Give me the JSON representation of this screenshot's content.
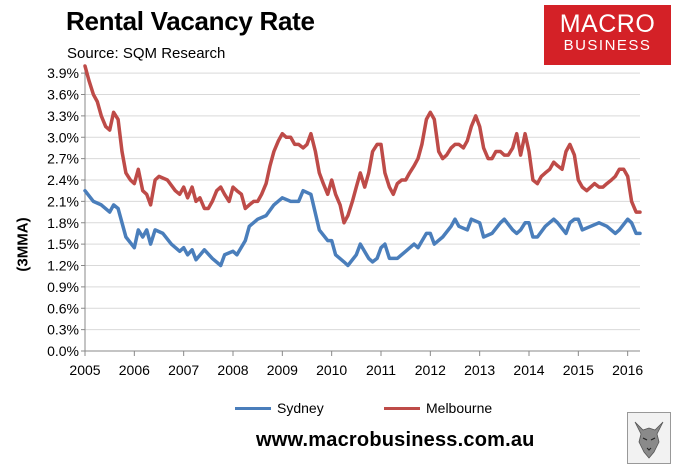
{
  "header": {
    "title": "Rental Vacancy Rate",
    "source": "Source: SQM Research"
  },
  "logo": {
    "line1": "MACRO",
    "line2": "BUSINESS"
  },
  "footer": {
    "url": "www.macrobusiness.com.au"
  },
  "colors": {
    "sydney": "#4a7ebb",
    "melbourne": "#be4b48",
    "grid": "#d9d9d9",
    "logo": "#d42127"
  },
  "chart_data": {
    "type": "line",
    "title": "Rental Vacancy Rate",
    "ylabel": "(3MMA)",
    "xlabel": "",
    "ylim": [
      0,
      4.0
    ],
    "xlim": [
      2005,
      2016.25
    ],
    "yticks": [
      "0.0%",
      "0.3%",
      "0.6%",
      "0.9%",
      "1.2%",
      "1.5%",
      "1.8%",
      "2.1%",
      "2.4%",
      "2.7%",
      "3.0%",
      "3.3%",
      "3.6%",
      "3.9%"
    ],
    "ytick_values": [
      0,
      0.3,
      0.6,
      0.9,
      1.2,
      1.5,
      1.8,
      2.1,
      2.4,
      2.7,
      3.0,
      3.3,
      3.6,
      3.9
    ],
    "xticks": [
      "2005",
      "2006",
      "2007",
      "2008",
      "2009",
      "2010",
      "2011",
      "2012",
      "2013",
      "2014",
      "2015",
      "2016"
    ],
    "legend_position": "bottom",
    "grid": true,
    "series": [
      {
        "name": "Sydney",
        "points": [
          [
            2005.0,
            2.25
          ],
          [
            2005.17,
            2.1
          ],
          [
            2005.33,
            2.05
          ],
          [
            2005.5,
            1.95
          ],
          [
            2005.58,
            2.05
          ],
          [
            2005.67,
            2.0
          ],
          [
            2005.83,
            1.6
          ],
          [
            2006.0,
            1.45
          ],
          [
            2006.08,
            1.7
          ],
          [
            2006.17,
            1.6
          ],
          [
            2006.25,
            1.7
          ],
          [
            2006.33,
            1.5
          ],
          [
            2006.42,
            1.7
          ],
          [
            2006.58,
            1.65
          ],
          [
            2006.75,
            1.5
          ],
          [
            2006.92,
            1.4
          ],
          [
            2007.0,
            1.45
          ],
          [
            2007.08,
            1.35
          ],
          [
            2007.17,
            1.42
          ],
          [
            2007.25,
            1.28
          ],
          [
            2007.42,
            1.42
          ],
          [
            2007.58,
            1.3
          ],
          [
            2007.75,
            1.2
          ],
          [
            2007.83,
            1.35
          ],
          [
            2008.0,
            1.4
          ],
          [
            2008.08,
            1.35
          ],
          [
            2008.25,
            1.55
          ],
          [
            2008.33,
            1.75
          ],
          [
            2008.5,
            1.85
          ],
          [
            2008.67,
            1.9
          ],
          [
            2008.83,
            2.05
          ],
          [
            2009.0,
            2.15
          ],
          [
            2009.17,
            2.1
          ],
          [
            2009.33,
            2.1
          ],
          [
            2009.42,
            2.25
          ],
          [
            2009.58,
            2.2
          ],
          [
            2009.75,
            1.7
          ],
          [
            2009.92,
            1.55
          ],
          [
            2010.0,
            1.55
          ],
          [
            2010.08,
            1.35
          ],
          [
            2010.25,
            1.25
          ],
          [
            2010.33,
            1.2
          ],
          [
            2010.5,
            1.35
          ],
          [
            2010.58,
            1.5
          ],
          [
            2010.75,
            1.3
          ],
          [
            2010.83,
            1.25
          ],
          [
            2010.92,
            1.3
          ],
          [
            2011.0,
            1.45
          ],
          [
            2011.08,
            1.5
          ],
          [
            2011.17,
            1.3
          ],
          [
            2011.33,
            1.3
          ],
          [
            2011.5,
            1.4
          ],
          [
            2011.67,
            1.5
          ],
          [
            2011.75,
            1.45
          ],
          [
            2011.92,
            1.65
          ],
          [
            2012.0,
            1.65
          ],
          [
            2012.08,
            1.5
          ],
          [
            2012.25,
            1.6
          ],
          [
            2012.42,
            1.75
          ],
          [
            2012.5,
            1.85
          ],
          [
            2012.58,
            1.75
          ],
          [
            2012.75,
            1.7
          ],
          [
            2012.83,
            1.85
          ],
          [
            2013.0,
            1.8
          ],
          [
            2013.08,
            1.6
          ],
          [
            2013.25,
            1.65
          ],
          [
            2013.42,
            1.8
          ],
          [
            2013.5,
            1.85
          ],
          [
            2013.67,
            1.7
          ],
          [
            2013.75,
            1.65
          ],
          [
            2013.83,
            1.7
          ],
          [
            2013.92,
            1.8
          ],
          [
            2014.0,
            1.8
          ],
          [
            2014.08,
            1.6
          ],
          [
            2014.17,
            1.6
          ],
          [
            2014.33,
            1.75
          ],
          [
            2014.5,
            1.85
          ],
          [
            2014.58,
            1.8
          ],
          [
            2014.75,
            1.65
          ],
          [
            2014.83,
            1.8
          ],
          [
            2014.92,
            1.85
          ],
          [
            2015.0,
            1.85
          ],
          [
            2015.08,
            1.7
          ],
          [
            2015.25,
            1.75
          ],
          [
            2015.42,
            1.8
          ],
          [
            2015.58,
            1.75
          ],
          [
            2015.75,
            1.65
          ],
          [
            2015.83,
            1.7
          ],
          [
            2016.0,
            1.85
          ],
          [
            2016.08,
            1.8
          ],
          [
            2016.17,
            1.65
          ],
          [
            2016.25,
            1.65
          ]
        ]
      },
      {
        "name": "Melbourne",
        "points": [
          [
            2005.0,
            4.0
          ],
          [
            2005.08,
            3.8
          ],
          [
            2005.17,
            3.6
          ],
          [
            2005.25,
            3.5
          ],
          [
            2005.33,
            3.3
          ],
          [
            2005.42,
            3.15
          ],
          [
            2005.5,
            3.1
          ],
          [
            2005.58,
            3.35
          ],
          [
            2005.67,
            3.25
          ],
          [
            2005.75,
            2.8
          ],
          [
            2005.83,
            2.5
          ],
          [
            2005.92,
            2.4
          ],
          [
            2006.0,
            2.35
          ],
          [
            2006.08,
            2.55
          ],
          [
            2006.17,
            2.25
          ],
          [
            2006.25,
            2.2
          ],
          [
            2006.33,
            2.05
          ],
          [
            2006.42,
            2.4
          ],
          [
            2006.5,
            2.45
          ],
          [
            2006.67,
            2.4
          ],
          [
            2006.83,
            2.25
          ],
          [
            2006.92,
            2.2
          ],
          [
            2007.0,
            2.3
          ],
          [
            2007.08,
            2.15
          ],
          [
            2007.17,
            2.3
          ],
          [
            2007.25,
            2.1
          ],
          [
            2007.33,
            2.15
          ],
          [
            2007.42,
            2.0
          ],
          [
            2007.5,
            2.0
          ],
          [
            2007.58,
            2.1
          ],
          [
            2007.67,
            2.25
          ],
          [
            2007.75,
            2.3
          ],
          [
            2007.83,
            2.2
          ],
          [
            2007.92,
            2.1
          ],
          [
            2008.0,
            2.3
          ],
          [
            2008.08,
            2.25
          ],
          [
            2008.17,
            2.2
          ],
          [
            2008.25,
            2.0
          ],
          [
            2008.33,
            2.05
          ],
          [
            2008.42,
            2.1
          ],
          [
            2008.5,
            2.1
          ],
          [
            2008.58,
            2.2
          ],
          [
            2008.67,
            2.35
          ],
          [
            2008.75,
            2.6
          ],
          [
            2008.83,
            2.8
          ],
          [
            2008.92,
            2.95
          ],
          [
            2009.0,
            3.05
          ],
          [
            2009.08,
            3.0
          ],
          [
            2009.17,
            3.0
          ],
          [
            2009.25,
            2.9
          ],
          [
            2009.33,
            2.9
          ],
          [
            2009.42,
            2.85
          ],
          [
            2009.5,
            2.9
          ],
          [
            2009.58,
            3.05
          ],
          [
            2009.67,
            2.8
          ],
          [
            2009.75,
            2.5
          ],
          [
            2009.83,
            2.35
          ],
          [
            2009.92,
            2.2
          ],
          [
            2010.0,
            2.4
          ],
          [
            2010.08,
            2.2
          ],
          [
            2010.17,
            2.05
          ],
          [
            2010.25,
            1.8
          ],
          [
            2010.33,
            1.9
          ],
          [
            2010.42,
            2.1
          ],
          [
            2010.5,
            2.3
          ],
          [
            2010.58,
            2.5
          ],
          [
            2010.67,
            2.3
          ],
          [
            2010.75,
            2.5
          ],
          [
            2010.83,
            2.8
          ],
          [
            2010.92,
            2.9
          ],
          [
            2011.0,
            2.9
          ],
          [
            2011.08,
            2.5
          ],
          [
            2011.17,
            2.3
          ],
          [
            2011.25,
            2.2
          ],
          [
            2011.33,
            2.35
          ],
          [
            2011.42,
            2.4
          ],
          [
            2011.5,
            2.4
          ],
          [
            2011.58,
            2.5
          ],
          [
            2011.67,
            2.6
          ],
          [
            2011.75,
            2.7
          ],
          [
            2011.83,
            2.9
          ],
          [
            2011.92,
            3.25
          ],
          [
            2012.0,
            3.35
          ],
          [
            2012.08,
            3.25
          ],
          [
            2012.17,
            2.8
          ],
          [
            2012.25,
            2.7
          ],
          [
            2012.33,
            2.75
          ],
          [
            2012.42,
            2.85
          ],
          [
            2012.5,
            2.9
          ],
          [
            2012.58,
            2.9
          ],
          [
            2012.67,
            2.85
          ],
          [
            2012.75,
            2.95
          ],
          [
            2012.83,
            3.15
          ],
          [
            2012.92,
            3.3
          ],
          [
            2013.0,
            3.15
          ],
          [
            2013.08,
            2.85
          ],
          [
            2013.17,
            2.7
          ],
          [
            2013.25,
            2.7
          ],
          [
            2013.33,
            2.8
          ],
          [
            2013.42,
            2.8
          ],
          [
            2013.5,
            2.75
          ],
          [
            2013.58,
            2.75
          ],
          [
            2013.67,
            2.85
          ],
          [
            2013.75,
            3.05
          ],
          [
            2013.83,
            2.75
          ],
          [
            2013.92,
            3.05
          ],
          [
            2014.0,
            2.8
          ],
          [
            2014.08,
            2.4
          ],
          [
            2014.17,
            2.35
          ],
          [
            2014.25,
            2.45
          ],
          [
            2014.33,
            2.5
          ],
          [
            2014.42,
            2.55
          ],
          [
            2014.5,
            2.65
          ],
          [
            2014.58,
            2.6
          ],
          [
            2014.67,
            2.55
          ],
          [
            2014.75,
            2.8
          ],
          [
            2014.83,
            2.9
          ],
          [
            2014.92,
            2.75
          ],
          [
            2015.0,
            2.4
          ],
          [
            2015.08,
            2.3
          ],
          [
            2015.17,
            2.25
          ],
          [
            2015.25,
            2.3
          ],
          [
            2015.33,
            2.35
          ],
          [
            2015.42,
            2.3
          ],
          [
            2015.5,
            2.3
          ],
          [
            2015.58,
            2.35
          ],
          [
            2015.67,
            2.4
          ],
          [
            2015.75,
            2.45
          ],
          [
            2015.83,
            2.55
          ],
          [
            2015.92,
            2.55
          ],
          [
            2016.0,
            2.45
          ],
          [
            2016.08,
            2.1
          ],
          [
            2016.17,
            1.95
          ],
          [
            2016.25,
            1.95
          ]
        ]
      }
    ]
  }
}
